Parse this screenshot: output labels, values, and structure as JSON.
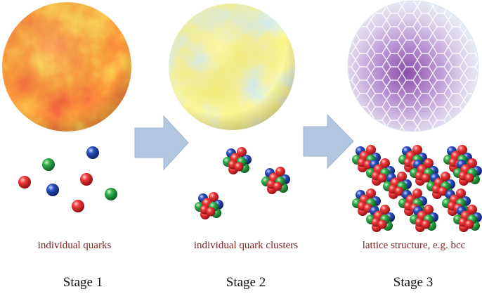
{
  "stages": [
    {
      "label": "Stage 1",
      "caption": "individual quarks"
    },
    {
      "label": "Stage 2",
      "caption": "individual quark clusters"
    },
    {
      "label": "Stage 3",
      "caption": "lattice structure, e.g. bcc"
    }
  ],
  "colors": {
    "quark_red": "#e2202a",
    "quark_green": "#1f9a3c",
    "quark_blue": "#1f3e9a",
    "arrow_fill": "#b3c6e0",
    "caption_text": "#7a2424"
  },
  "icons": {
    "sphere_1": "hot-plasma-sphere",
    "sphere_2": "cooling-sphere",
    "sphere_3": "voronoi-lattice-sphere",
    "arrow": "right-arrow"
  }
}
